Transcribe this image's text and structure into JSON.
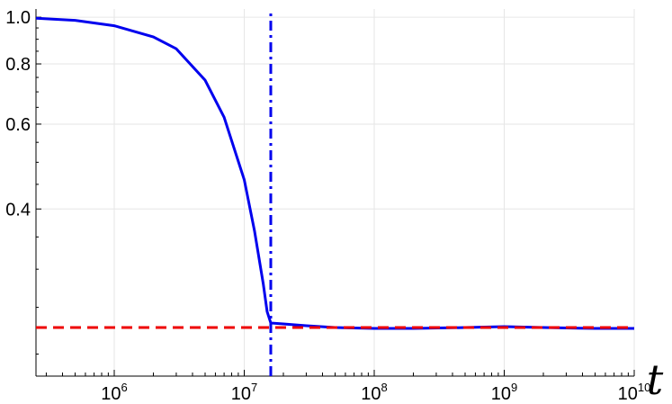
{
  "chart_data": {
    "type": "line",
    "x_scale": "log",
    "y_scale": "log",
    "xlim": [
      250000,
      10000000000
    ],
    "ylim": [
      0.18,
      1.04
    ],
    "xlabel": "t",
    "ylabel": "",
    "title": "",
    "grid": true,
    "x_ticks": [
      {
        "value": 1000000,
        "base": "10",
        "exp": "6"
      },
      {
        "value": 10000000,
        "base": "10",
        "exp": "7"
      },
      {
        "value": 100000000,
        "base": "10",
        "exp": "8"
      },
      {
        "value": 1000000000,
        "base": "10",
        "exp": "9"
      },
      {
        "value": 10000000000,
        "base": "10",
        "exp": "10"
      }
    ],
    "y_ticks": [
      {
        "value": 0.4,
        "label": "0.4"
      },
      {
        "value": 0.6,
        "label": "0.6"
      },
      {
        "value": 0.8,
        "label": "0.8"
      },
      {
        "value": 1.0,
        "label": "1.0"
      }
    ],
    "series": [
      {
        "style": "solid",
        "color": "#0000ee",
        "x": [
          250000,
          500000,
          1000000,
          2000000,
          3000000,
          5000000,
          7000000,
          10000000,
          12000000,
          14000000,
          15000000,
          16000000,
          20000000,
          30000000,
          50000000,
          100000000,
          200000000,
          500000000,
          1000000000,
          2000000000,
          5000000000,
          10000000000
        ],
        "y": [
          0.995,
          0.985,
          0.96,
          0.91,
          0.86,
          0.74,
          0.62,
          0.46,
          0.36,
          0.28,
          0.245,
          0.232,
          0.231,
          0.229,
          0.227,
          0.226,
          0.226,
          0.227,
          0.228,
          0.227,
          0.226,
          0.226
        ]
      },
      {
        "style": "dashed",
        "color": "#ee0000",
        "x": [
          250000,
          10000000000
        ],
        "y": [
          0.227,
          0.227
        ]
      },
      {
        "style": "dash-dot",
        "color": "#0000ee",
        "x": [
          16000000,
          16000000
        ],
        "y": [
          0.18,
          1.04
        ]
      }
    ]
  }
}
